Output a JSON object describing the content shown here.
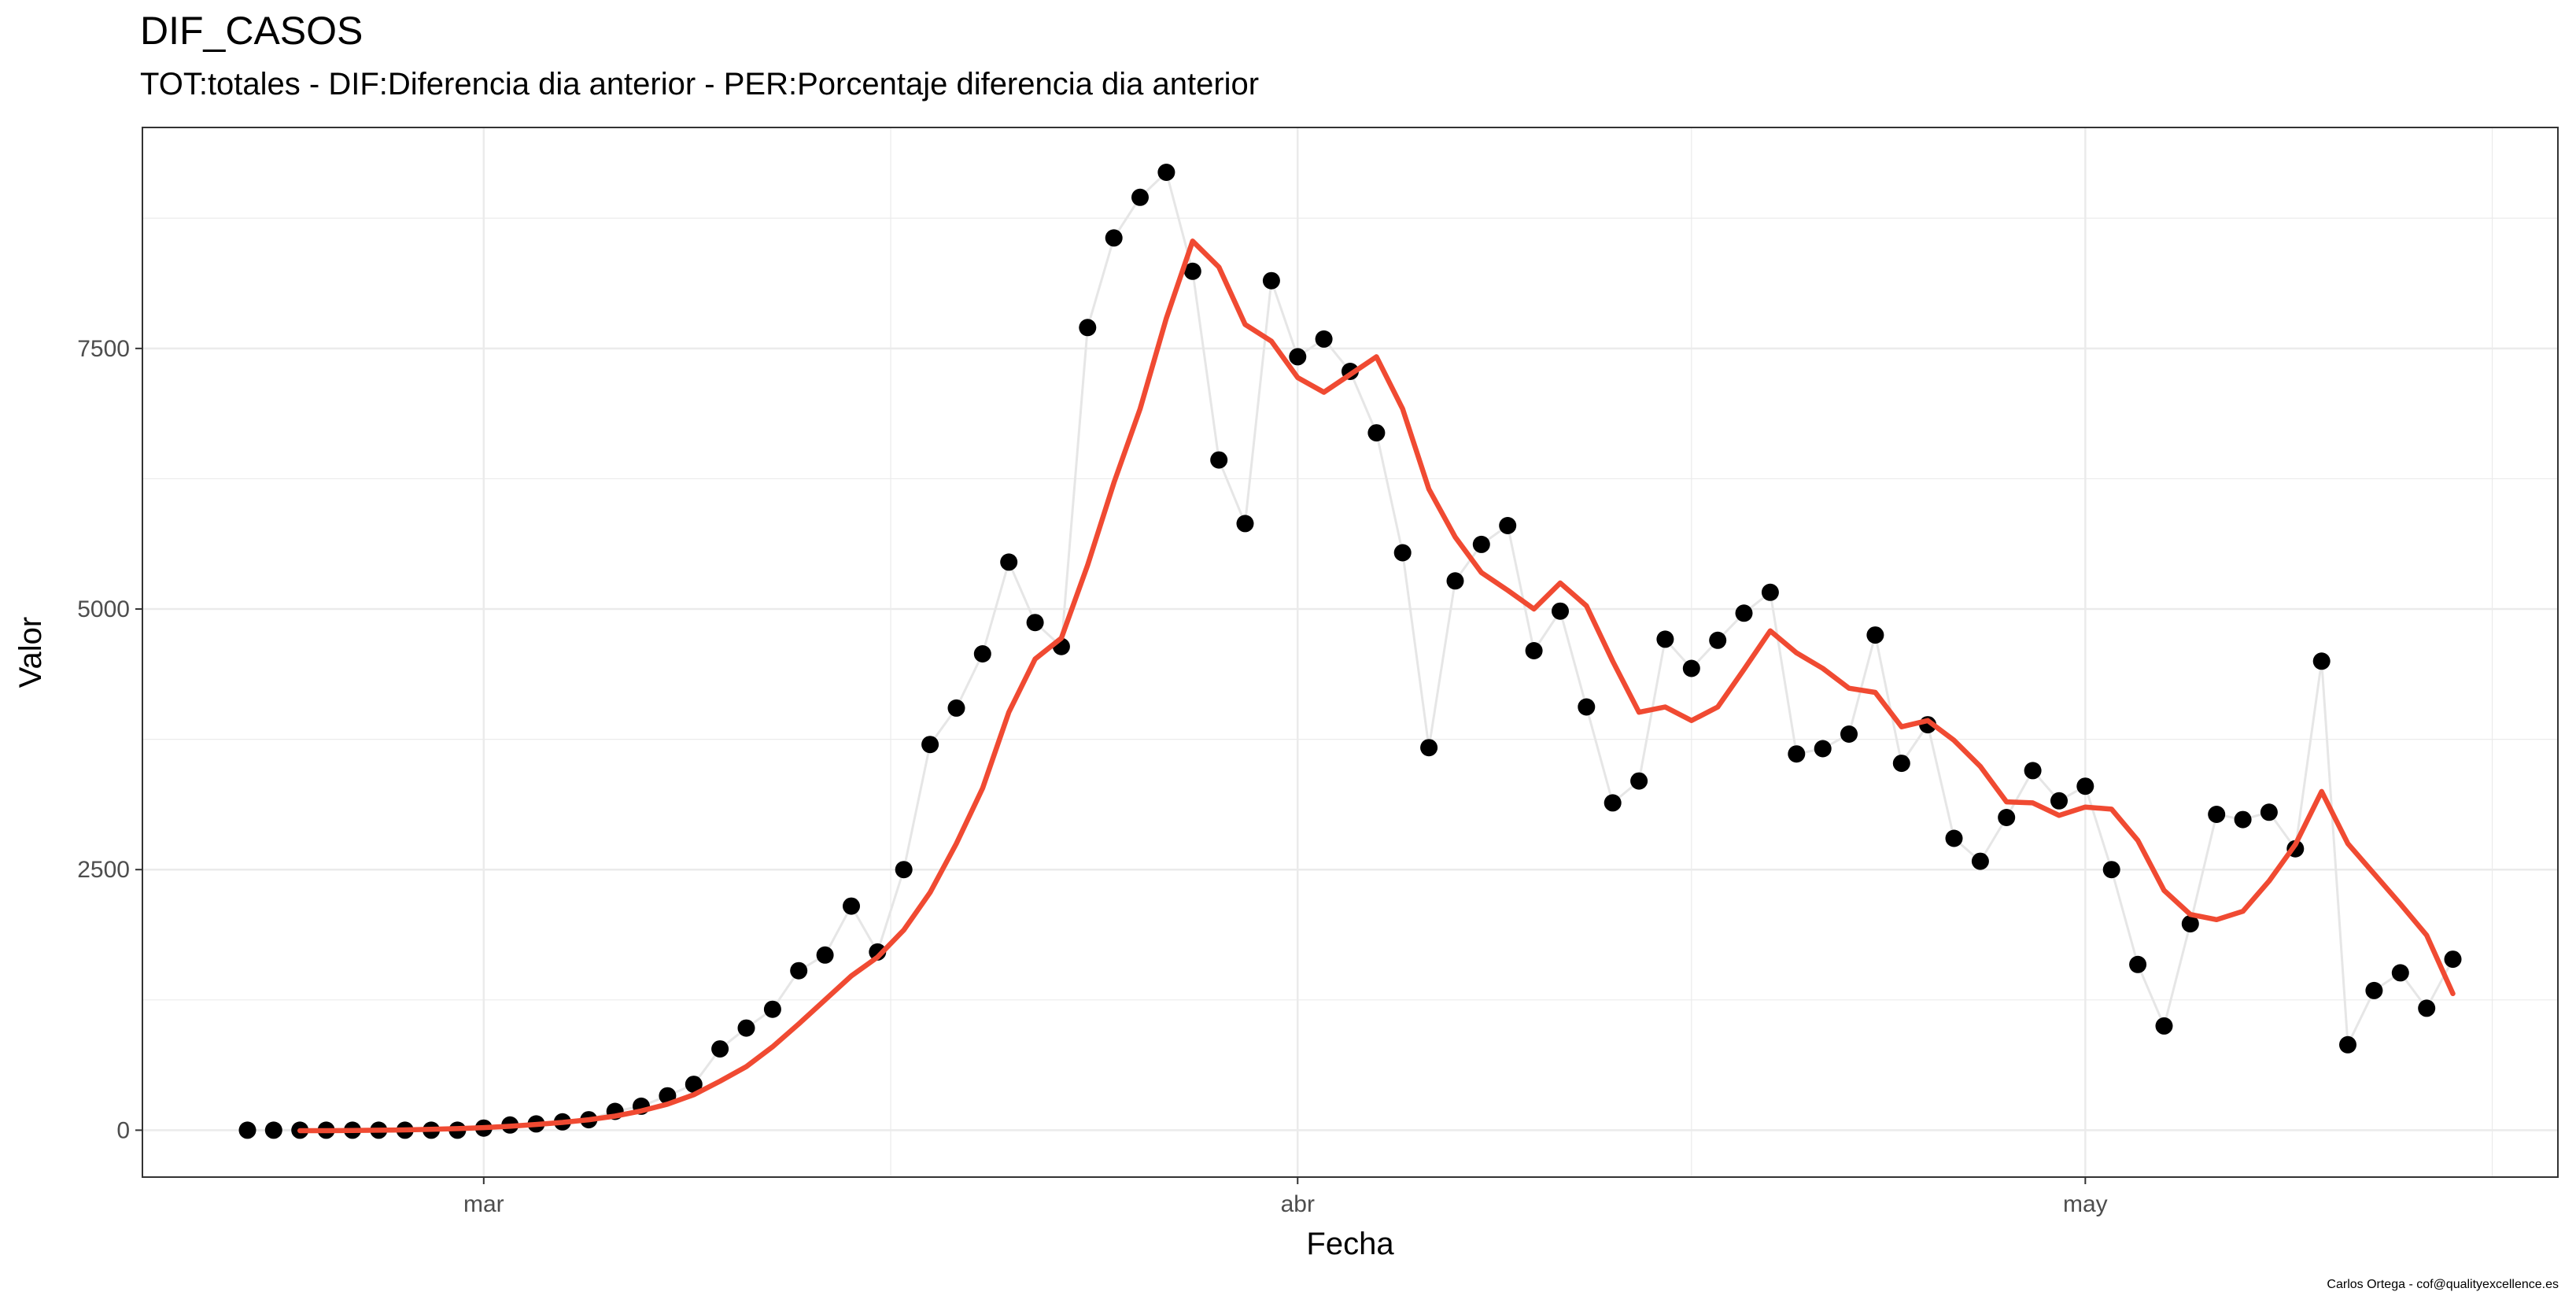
{
  "chart_data": {
    "type": "line",
    "title": "DIF_CASOS",
    "subtitle": "TOT:totales - DIF:Diferencia dia anterior - PER:Porcentaje diferencia dia anterior",
    "xlabel": "Fecha",
    "ylabel": "Valor",
    "caption": "Carlos Ortega - cof@qualityexcellence.es",
    "x_start": "2020-02-21",
    "x_ticks": [
      {
        "label": "mar",
        "day": 9
      },
      {
        "label": "abr",
        "day": 40
      },
      {
        "label": "may",
        "day": 70
      }
    ],
    "xlim_days": [
      -4,
      88
    ],
    "y_ticks": [
      0,
      2500,
      5000,
      7500
    ],
    "ylim": [
      -450,
      9620
    ],
    "grid": true,
    "series": [
      {
        "kind": "points",
        "color": "#000000",
        "line_color": "#e6e6e6",
        "values": [
          0,
          0,
          0,
          0,
          0,
          0,
          0,
          0,
          0,
          20,
          50,
          60,
          80,
          100,
          180,
          230,
          330,
          440,
          780,
          980,
          1160,
          1530,
          1680,
          2150,
          1710,
          2500,
          3700,
          4050,
          4570,
          5450,
          4870,
          4640,
          7700,
          8560,
          8950,
          9190,
          8240,
          6430,
          5820,
          8150,
          7420,
          7590,
          7280,
          6690,
          5540,
          3670,
          5270,
          5620,
          5800,
          4600,
          4980,
          4060,
          3140,
          3350,
          4710,
          4430,
          4700,
          4960,
          5160,
          3610,
          3660,
          3800,
          4750,
          3520,
          3890,
          2800,
          2580,
          3000,
          3450,
          3160,
          3300,
          2500,
          1590,
          1000,
          1980,
          3030,
          2980,
          3050,
          2700,
          4500,
          820,
          1340,
          1510,
          1170,
          1640
        ]
      },
      {
        "kind": "smooth",
        "color": "#F04A32",
        "start_index": 2,
        "values": [
          -5,
          -5,
          -3,
          0,
          3,
          8,
          15,
          25,
          38,
          55,
          75,
          100,
          135,
          185,
          250,
          340,
          470,
          610,
          800,
          1020,
          1250,
          1480,
          1660,
          1920,
          2280,
          2750,
          3280,
          4010,
          4520,
          4720,
          5420,
          6210,
          6920,
          7790,
          8530,
          8280,
          7730,
          7570,
          7220,
          7080,
          7250,
          7420,
          6920,
          6150,
          5690,
          5350,
          5180,
          5000,
          5250,
          5030,
          4500,
          4010,
          4060,
          3930,
          4060,
          4420,
          4790,
          4580,
          4430,
          4240,
          4200,
          3870,
          3930,
          3740,
          3490,
          3150,
          3140,
          3020,
          3100,
          3080,
          2780,
          2300,
          2070,
          2020,
          2100,
          2390,
          2740,
          3250,
          2750,
          2460,
          2170,
          1870,
          1310
        ]
      }
    ]
  }
}
